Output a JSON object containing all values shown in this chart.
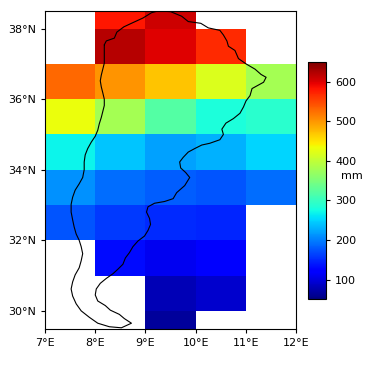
{
  "title": "",
  "xlim": [
    7.0,
    12.0
  ],
  "ylim": [
    29.5,
    38.5
  ],
  "xticks": [
    7,
    8,
    9,
    10,
    11,
    12
  ],
  "yticks": [
    30,
    32,
    34,
    36,
    38
  ],
  "xlabel_labels": [
    "7°E",
    "8°E",
    "9°E",
    "10°E",
    "11°E",
    "12°E"
  ],
  "ylabel_labels": [
    "30°N",
    "32°N",
    "34°N",
    "36°N",
    "38°N"
  ],
  "colorbar_ticks": [
    100,
    200,
    300,
    400,
    500,
    600
  ],
  "colorbar_label": "mm",
  "vmin": 50,
  "vmax": 650,
  "cell_size": 1.0,
  "grid_data": [
    {
      "lon": 8.5,
      "lat": 37.5,
      "val": 620
    },
    {
      "lon": 9.5,
      "lat": 37.5,
      "val": 600
    },
    {
      "lon": 10.5,
      "lat": 37.5,
      "val": 570
    },
    {
      "lon": 8.5,
      "lat": 38.5,
      "val": 580
    },
    {
      "lon": 9.5,
      "lat": 38.5,
      "val": 610
    },
    {
      "lon": 7.5,
      "lat": 36.5,
      "val": 530
    },
    {
      "lon": 8.5,
      "lat": 36.5,
      "val": 500
    },
    {
      "lon": 9.5,
      "lat": 36.5,
      "val": 470
    },
    {
      "lon": 10.5,
      "lat": 36.5,
      "val": 420
    },
    {
      "lon": 11.5,
      "lat": 36.5,
      "val": 380
    },
    {
      "lon": 7.5,
      "lat": 35.5,
      "val": 430
    },
    {
      "lon": 8.5,
      "lat": 35.5,
      "val": 380
    },
    {
      "lon": 9.5,
      "lat": 35.5,
      "val": 320
    },
    {
      "lon": 10.5,
      "lat": 35.5,
      "val": 280
    },
    {
      "lon": 11.5,
      "lat": 35.5,
      "val": 290
    },
    {
      "lon": 7.5,
      "lat": 34.5,
      "val": 270
    },
    {
      "lon": 8.5,
      "lat": 34.5,
      "val": 240
    },
    {
      "lon": 9.5,
      "lat": 34.5,
      "val": 220
    },
    {
      "lon": 10.5,
      "lat": 34.5,
      "val": 230
    },
    {
      "lon": 11.5,
      "lat": 34.5,
      "val": 250
    },
    {
      "lon": 7.5,
      "lat": 33.5,
      "val": 210
    },
    {
      "lon": 8.5,
      "lat": 33.5,
      "val": 190
    },
    {
      "lon": 9.5,
      "lat": 33.5,
      "val": 180
    },
    {
      "lon": 10.5,
      "lat": 33.5,
      "val": 175
    },
    {
      "lon": 11.5,
      "lat": 33.5,
      "val": 190
    },
    {
      "lon": 7.5,
      "lat": 32.5,
      "val": 175
    },
    {
      "lon": 8.5,
      "lat": 32.5,
      "val": 160
    },
    {
      "lon": 9.5,
      "lat": 32.5,
      "val": 150
    },
    {
      "lon": 10.5,
      "lat": 32.5,
      "val": 148
    },
    {
      "lon": 8.5,
      "lat": 31.5,
      "val": 130
    },
    {
      "lon": 9.5,
      "lat": 31.5,
      "val": 110
    },
    {
      "lon": 10.5,
      "lat": 31.5,
      "val": 120
    },
    {
      "lon": 9.5,
      "lat": 30.5,
      "val": 80
    },
    {
      "lon": 10.5,
      "lat": 30.5,
      "val": 90
    },
    {
      "lon": 9.5,
      "lat": 29.5,
      "val": 65
    }
  ],
  "background_color": "#ffffff",
  "tunisia_border_color": "#000000",
  "tunisia_coords": [
    [
      8.18,
      37.54
    ],
    [
      8.22,
      37.65
    ],
    [
      8.38,
      37.73
    ],
    [
      8.43,
      37.9
    ],
    [
      8.57,
      38.05
    ],
    [
      8.72,
      38.15
    ],
    [
      8.95,
      38.3
    ],
    [
      9.12,
      38.45
    ],
    [
      9.25,
      38.5
    ],
    [
      9.5,
      38.48
    ],
    [
      9.72,
      38.35
    ],
    [
      9.85,
      38.2
    ],
    [
      10.1,
      38.15
    ],
    [
      10.25,
      38.02
    ],
    [
      10.48,
      37.95
    ],
    [
      10.55,
      37.82
    ],
    [
      10.62,
      37.65
    ],
    [
      10.65,
      37.5
    ],
    [
      10.78,
      37.38
    ],
    [
      10.85,
      37.15
    ],
    [
      11.0,
      37.0
    ],
    [
      11.18,
      36.85
    ],
    [
      11.3,
      36.7
    ],
    [
      11.4,
      36.62
    ],
    [
      11.35,
      36.48
    ],
    [
      11.12,
      36.3
    ],
    [
      11.08,
      36.1
    ],
    [
      11.0,
      35.95
    ],
    [
      10.95,
      35.78
    ],
    [
      10.88,
      35.6
    ],
    [
      10.75,
      35.45
    ],
    [
      10.6,
      35.32
    ],
    [
      10.52,
      35.15
    ],
    [
      10.55,
      35.0
    ],
    [
      10.48,
      34.85
    ],
    [
      10.28,
      34.75
    ],
    [
      10.12,
      34.7
    ],
    [
      9.98,
      34.6
    ],
    [
      9.85,
      34.5
    ],
    [
      9.75,
      34.35
    ],
    [
      9.68,
      34.22
    ],
    [
      9.7,
      34.05
    ],
    [
      9.8,
      33.92
    ],
    [
      9.88,
      33.78
    ],
    [
      9.78,
      33.55
    ],
    [
      9.62,
      33.35
    ],
    [
      9.55,
      33.18
    ],
    [
      9.38,
      33.1
    ],
    [
      9.18,
      33.05
    ],
    [
      9.05,
      32.95
    ],
    [
      9.02,
      32.8
    ],
    [
      9.08,
      32.62
    ],
    [
      9.1,
      32.45
    ],
    [
      9.05,
      32.28
    ],
    [
      8.98,
      32.12
    ],
    [
      8.85,
      31.98
    ],
    [
      8.75,
      31.82
    ],
    [
      8.68,
      31.65
    ],
    [
      8.6,
      31.5
    ],
    [
      8.55,
      31.32
    ],
    [
      8.45,
      31.18
    ],
    [
      8.35,
      31.05
    ],
    [
      8.22,
      30.92
    ],
    [
      8.1,
      30.78
    ],
    [
      8.02,
      30.62
    ],
    [
      8.0,
      30.45
    ],
    [
      8.05,
      30.28
    ],
    [
      8.2,
      30.15
    ],
    [
      8.3,
      30.02
    ],
    [
      8.48,
      29.9
    ],
    [
      8.58,
      29.78
    ],
    [
      8.72,
      29.65
    ],
    [
      8.52,
      29.52
    ],
    [
      8.28,
      29.55
    ],
    [
      8.05,
      29.65
    ],
    [
      7.88,
      29.82
    ],
    [
      7.72,
      30.0
    ],
    [
      7.62,
      30.2
    ],
    [
      7.55,
      30.42
    ],
    [
      7.52,
      30.62
    ],
    [
      7.55,
      30.82
    ],
    [
      7.6,
      31.02
    ],
    [
      7.68,
      31.22
    ],
    [
      7.72,
      31.42
    ],
    [
      7.75,
      31.62
    ],
    [
      7.72,
      31.82
    ],
    [
      7.68,
      32.0
    ],
    [
      7.62,
      32.18
    ],
    [
      7.58,
      32.38
    ],
    [
      7.55,
      32.58
    ],
    [
      7.52,
      32.8
    ],
    [
      7.52,
      33.02
    ],
    [
      7.55,
      33.22
    ],
    [
      7.6,
      33.42
    ],
    [
      7.68,
      33.6
    ],
    [
      7.75,
      33.78
    ],
    [
      7.78,
      34.0
    ],
    [
      7.78,
      34.22
    ],
    [
      7.8,
      34.42
    ],
    [
      7.85,
      34.6
    ],
    [
      7.92,
      34.78
    ],
    [
      8.0,
      34.95
    ],
    [
      8.05,
      35.12
    ],
    [
      8.08,
      35.3
    ],
    [
      8.12,
      35.48
    ],
    [
      8.15,
      35.65
    ],
    [
      8.18,
      35.82
    ],
    [
      8.18,
      36.0
    ],
    [
      8.15,
      36.18
    ],
    [
      8.12,
      36.35
    ],
    [
      8.1,
      36.52
    ],
    [
      8.12,
      36.68
    ],
    [
      8.15,
      36.85
    ],
    [
      8.18,
      37.02
    ],
    [
      8.18,
      37.2
    ],
    [
      8.18,
      37.38
    ],
    [
      8.18,
      37.54
    ]
  ]
}
